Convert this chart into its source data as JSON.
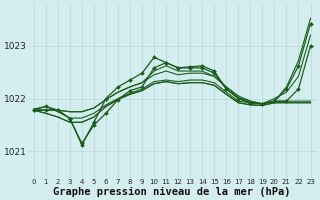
{
  "background_color": "#d4eef0",
  "grid_color": "#b8d8d8",
  "line_color": "#1a5c1a",
  "xlabel": "Graphe pression niveau de la mer (hPa)",
  "x_ticks": [
    0,
    1,
    2,
    3,
    4,
    5,
    6,
    7,
    8,
    9,
    10,
    11,
    12,
    13,
    14,
    15,
    16,
    17,
    18,
    19,
    20,
    21,
    22,
    23
  ],
  "ylim": [
    1020.5,
    1023.8
  ],
  "xlim": [
    -0.5,
    23.5
  ],
  "yticks": [
    1021,
    1022,
    1023
  ],
  "series": [
    {
      "y": [
        1021.8,
        1021.85,
        1021.75,
        1021.63,
        1021.63,
        1021.72,
        1021.88,
        1022.0,
        1022.1,
        1022.18,
        1022.32,
        1022.35,
        1022.32,
        1022.35,
        1022.35,
        1022.3,
        1022.12,
        1021.95,
        1021.92,
        1021.9,
        1021.95,
        1021.95,
        1021.95,
        1021.95
      ],
      "markers": false,
      "lw": 0.8,
      "style": "solid"
    },
    {
      "y": [
        1021.78,
        1021.72,
        1021.65,
        1021.55,
        1021.55,
        1021.65,
        1021.85,
        1021.98,
        1022.08,
        1022.15,
        1022.28,
        1022.32,
        1022.28,
        1022.3,
        1022.3,
        1022.25,
        1022.08,
        1021.92,
        1021.88,
        1021.87,
        1021.92,
        1021.92,
        1021.92,
        1021.92
      ],
      "markers": false,
      "lw": 0.8,
      "style": "solid"
    },
    {
      "y": [
        1021.78,
        1021.72,
        1021.65,
        1021.55,
        1021.55,
        1021.65,
        1021.85,
        1021.98,
        1022.08,
        1022.15,
        1022.28,
        1022.32,
        1022.28,
        1022.3,
        1022.3,
        1022.25,
        1022.08,
        1021.92,
        1021.88,
        1021.87,
        1021.92,
        1021.92,
        1021.92,
        1021.92
      ],
      "markers": false,
      "lw": 0.8,
      "style": "solid"
    },
    {
      "y": [
        1021.78,
        1021.85,
        1021.78,
        1021.62,
        1021.15,
        1021.5,
        1021.72,
        1021.98,
        1022.15,
        1022.22,
        1022.58,
        1022.68,
        1022.58,
        1022.58,
        1022.58,
        1022.48,
        1022.18,
        1022.0,
        1021.92,
        1021.9,
        1021.95,
        1021.95,
        1022.18,
        1023.0
      ],
      "markers": true,
      "lw": 0.9,
      "style": "solid"
    },
    {
      "y": [
        1021.78,
        1021.78,
        1021.78,
        1021.62,
        1021.12,
        1021.55,
        1022.0,
        1022.22,
        1022.35,
        1022.48,
        1022.78,
        1022.68,
        1022.58,
        1022.6,
        1022.62,
        1022.52,
        1022.18,
        1022.0,
        1021.92,
        1021.9,
        1021.95,
        1022.18,
        1022.62,
        1023.42
      ],
      "markers": true,
      "lw": 0.9,
      "style": "solid"
    },
    {
      "y": [
        1021.78,
        1021.78,
        1021.78,
        1021.75,
        1021.75,
        1021.82,
        1021.98,
        1022.12,
        1022.22,
        1022.3,
        1022.45,
        1022.52,
        1022.45,
        1022.48,
        1022.48,
        1022.42,
        1022.22,
        1022.05,
        1021.95,
        1021.9,
        1022.0,
        1022.12,
        1022.42,
        1023.2
      ],
      "markers": false,
      "lw": 0.8,
      "style": "solid"
    },
    {
      "y": [
        1021.78,
        1021.78,
        1021.78,
        1021.75,
        1021.75,
        1021.82,
        1021.98,
        1022.12,
        1022.22,
        1022.3,
        1022.52,
        1022.62,
        1022.52,
        1022.52,
        1022.52,
        1022.42,
        1022.22,
        1022.02,
        1021.95,
        1021.9,
        1021.95,
        1022.22,
        1022.72,
        1023.52
      ],
      "markers": false,
      "lw": 0.8,
      "style": "solid"
    }
  ]
}
